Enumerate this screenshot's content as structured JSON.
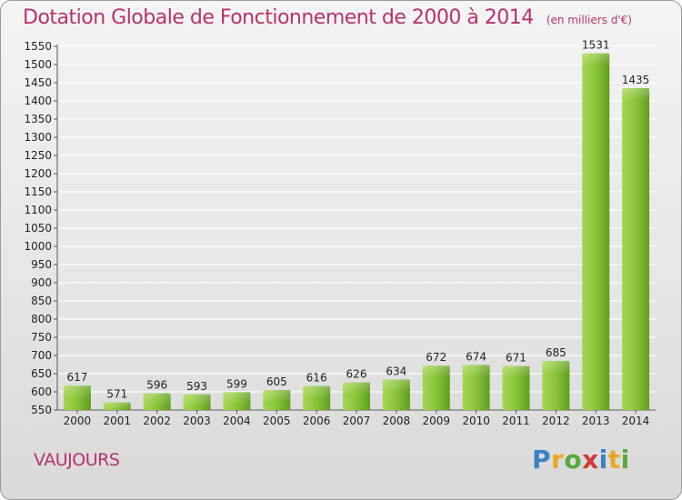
{
  "header": {
    "title": "Dotation Globale de Fonctionnement de 2000 à 2014",
    "subtitle": "(en milliers d'€)"
  },
  "footer": {
    "commune": "VAUJOURS",
    "logo_letters": [
      "P",
      "r",
      "o",
      "x",
      "i",
      "t",
      "i"
    ]
  },
  "colors": {
    "title": "#b5336b",
    "bar_light": "#9fd14a",
    "bar_dark": "#5f9e1d",
    "grid": "#ffffff"
  },
  "chart_data": {
    "type": "bar",
    "title": "Dotation Globale de Fonctionnement de 2000 à 2014",
    "subtitle": "(en milliers d'€)",
    "categories": [
      "2000",
      "2001",
      "2002",
      "2003",
      "2004",
      "2005",
      "2006",
      "2007",
      "2008",
      "2009",
      "2010",
      "2011",
      "2012",
      "2013",
      "2014"
    ],
    "values": [
      617,
      571,
      596,
      593,
      599,
      605,
      616,
      626,
      634,
      672,
      674,
      671,
      685,
      1531,
      1435
    ],
    "ylim": [
      550,
      1550
    ],
    "yticks": [
      550,
      600,
      650,
      700,
      750,
      800,
      850,
      900,
      950,
      1000,
      1050,
      1100,
      1150,
      1200,
      1250,
      1300,
      1350,
      1400,
      1450,
      1500,
      1550
    ],
    "xlabel": "",
    "ylabel": "",
    "grid": true,
    "legend": "none"
  }
}
